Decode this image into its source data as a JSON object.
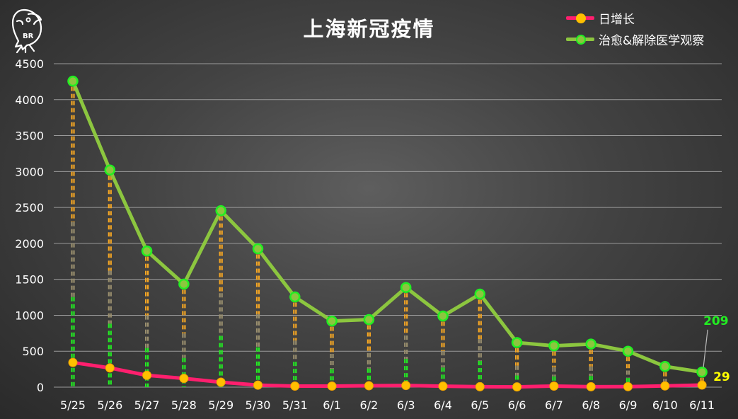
{
  "chart_data": {
    "type": "line",
    "title": "上海新冠疫情",
    "categories": [
      "5/25",
      "5/26",
      "5/27",
      "5/28",
      "5/29",
      "5/30",
      "5/31",
      "6/1",
      "6/2",
      "6/3",
      "6/4",
      "6/5",
      "6/6",
      "6/7",
      "6/8",
      "6/9",
      "6/10",
      "6/11"
    ],
    "series": [
      {
        "name": "日增长",
        "color": "#ff1f6e",
        "marker_color": "#ffc000",
        "values": [
          343,
          267,
          165,
          122,
          69,
          28,
          15,
          15,
          20,
          23,
          13,
          6,
          4,
          15,
          6,
          7,
          17,
          29
        ]
      },
      {
        "name": "治愈&解除医学观察",
        "color": "#8cc63f",
        "marker_color": "#22ee22",
        "values": [
          4257,
          3021,
          1894,
          1434,
          2455,
          1925,
          1255,
          920,
          940,
          1386,
          990,
          1295,
          620,
          575,
          600,
          500,
          288,
          209
        ]
      }
    ],
    "ylim": [
      0,
      4500
    ],
    "yticks": [
      0,
      500,
      1000,
      1500,
      2000,
      2500,
      3000,
      3500,
      4000,
      4500
    ],
    "grid": true,
    "legend_position": "top-right",
    "annotations": [
      {
        "text": "209",
        "color": "#22ee22",
        "series": 1,
        "index": 17
      },
      {
        "text": "29",
        "color": "#ffff00",
        "series": 0,
        "index": 17
      }
    ],
    "drop_line_colors": [
      "#f5a623",
      "#9a8f6e",
      "#22ee22"
    ]
  },
  "logo_text": "BR"
}
